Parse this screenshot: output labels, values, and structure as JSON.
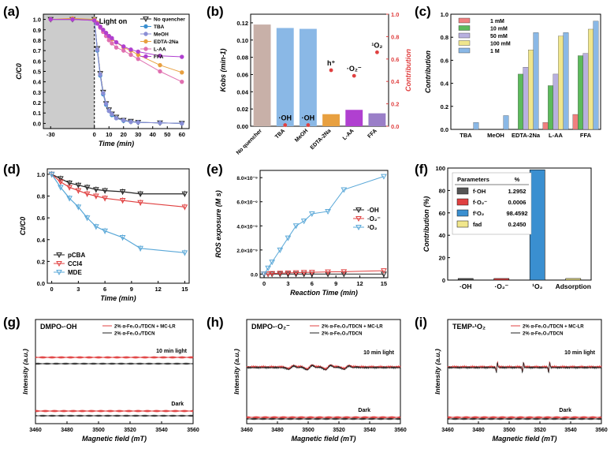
{
  "figure_title": "Quenching experiments, ROS contributions, and EPR spectra",
  "colors": {
    "black": "#222222",
    "blue": "#3a8fd0",
    "lavender": "#8b8fd6",
    "orange": "#e8a040",
    "pink": "#e070b0",
    "magenta": "#b040d0",
    "brown": "#c8b0a8",
    "light_blue": "#8ab8e6",
    "red": "#e04040",
    "cyan": "#5aa8d8",
    "purple": "#9a7fc8",
    "violet": "#b8b0e0",
    "green": "#5cba5c",
    "yellow": "#f0e68c",
    "dark_grey": "#555555",
    "salmon": "#f08080",
    "grey_region": "#cccccc"
  },
  "panels": {
    "a": {
      "label": "(a)"
    },
    "b": {
      "label": "(b)"
    },
    "c": {
      "label": "(c)"
    },
    "d": {
      "label": "(d)"
    },
    "e": {
      "label": "(e)"
    },
    "f": {
      "label": "(f)"
    },
    "g": {
      "label": "(g)"
    },
    "h": {
      "label": "(h)"
    },
    "i": {
      "label": "(i)"
    }
  },
  "chart_data": [
    {
      "panel": "a",
      "type": "line",
      "title": "",
      "xlabel": "Time (min)",
      "ylabel": "C/C0",
      "annotation": "Light on",
      "dark_region": [
        -30,
        0
      ],
      "xlim": [
        -35,
        65
      ],
      "ylim": [
        -0.05,
        1.05
      ],
      "xticks": [
        -30,
        0,
        10,
        20,
        30,
        40,
        50,
        60
      ],
      "yticks": [
        0.0,
        0.1,
        0.2,
        0.3,
        0.4,
        0.5,
        0.6,
        0.7,
        0.8,
        0.9,
        1.0
      ],
      "legend": "top-right",
      "series": [
        {
          "name": "No quencher",
          "color": "black",
          "x": [
            -30,
            -15,
            0,
            2,
            4,
            6,
            8,
            10,
            12,
            15,
            20,
            25,
            30,
            45,
            60
          ],
          "y": [
            1.0,
            1.0,
            1.0,
            0.72,
            0.48,
            0.3,
            0.19,
            0.13,
            0.09,
            0.06,
            0.03,
            0.02,
            0.01,
            0.005,
            0.0
          ]
        },
        {
          "name": "TBA",
          "color": "blue",
          "x": [
            -30,
            -15,
            0,
            2,
            4,
            6,
            8,
            10,
            12,
            15,
            20,
            25,
            30,
            45,
            60
          ],
          "y": [
            1.0,
            1.0,
            1.0,
            0.7,
            0.46,
            0.28,
            0.18,
            0.12,
            0.08,
            0.05,
            0.025,
            0.015,
            0.01,
            0.005,
            0.0
          ]
        },
        {
          "name": "MeOH",
          "color": "lavender",
          "x": [
            -30,
            -15,
            0,
            2,
            4,
            6,
            8,
            10,
            12,
            15,
            20,
            25,
            30,
            45,
            60
          ],
          "y": [
            1.0,
            1.0,
            0.99,
            0.71,
            0.47,
            0.29,
            0.19,
            0.12,
            0.09,
            0.05,
            0.03,
            0.015,
            0.01,
            0.005,
            0.0
          ]
        },
        {
          "name": "EDTA-2Na",
          "color": "orange",
          "x": [
            -30,
            -15,
            0,
            2,
            4,
            6,
            8,
            10,
            12,
            15,
            20,
            25,
            30,
            45,
            60
          ],
          "y": [
            1.0,
            1.01,
            1.0,
            0.97,
            0.93,
            0.9,
            0.87,
            0.84,
            0.81,
            0.78,
            0.73,
            0.7,
            0.66,
            0.56,
            0.49
          ]
        },
        {
          "name": "L-AA",
          "color": "pink",
          "x": [
            -30,
            -15,
            0,
            2,
            4,
            6,
            8,
            10,
            12,
            15,
            20,
            25,
            30,
            45,
            60
          ],
          "y": [
            1.0,
            1.0,
            0.99,
            0.96,
            0.92,
            0.88,
            0.84,
            0.8,
            0.77,
            0.73,
            0.7,
            0.66,
            0.62,
            0.5,
            0.4
          ]
        },
        {
          "name": "FFA",
          "color": "magenta",
          "x": [
            -30,
            -15,
            0,
            2,
            4,
            6,
            8,
            10,
            12,
            15,
            20,
            25,
            30,
            45,
            60
          ],
          "y": [
            1.0,
            1.0,
            0.99,
            0.96,
            0.93,
            0.9,
            0.87,
            0.84,
            0.82,
            0.78,
            0.74,
            0.71,
            0.69,
            0.65,
            0.64
          ]
        }
      ]
    },
    {
      "panel": "b",
      "type": "bar",
      "xlabel": "",
      "ylabel": "Kobs (min-1)",
      "ylabel_right": "Contribution",
      "ylim": [
        0,
        0.13
      ],
      "ylim_right": [
        0,
        1.0
      ],
      "yticks": [
        0.0,
        0.02,
        0.04,
        0.06,
        0.08,
        0.1,
        0.12
      ],
      "yticks_right": [
        0.0,
        0.2,
        0.4,
        0.6,
        0.8,
        1.0
      ],
      "categories": [
        "No quencher",
        "TBA",
        "MeOH",
        "EDTA-2Na",
        "L-AA",
        "FFA"
      ],
      "values": [
        0.118,
        0.114,
        0.113,
        0.014,
        0.019,
        0.015
      ],
      "bar_colors": [
        "brown",
        "light_blue",
        "light_blue",
        "orange",
        "magenta",
        "purple"
      ],
      "contribution_points": [
        {
          "category": "TBA",
          "value": 0.01,
          "label": "·OH"
        },
        {
          "category": "MeOH",
          "value": 0.01,
          "label": "·OH"
        },
        {
          "category": "EDTA-2Na",
          "value": 0.5,
          "label": "h⁺"
        },
        {
          "category": "L-AA",
          "value": 0.45,
          "label": "·O₂⁻"
        },
        {
          "category": "FFA",
          "value": 0.66,
          "label": "¹O₂"
        }
      ]
    },
    {
      "panel": "c",
      "type": "bar",
      "xlabel": "",
      "ylabel": "Contribution",
      "ylim": [
        0,
        1.0
      ],
      "yticks": [
        0.0,
        0.2,
        0.4,
        0.6,
        0.8,
        1.0
      ],
      "legend": "top-left",
      "categories": [
        "TBA",
        "MeOH",
        "EDTA-2Na",
        "L-AA",
        "FFA"
      ],
      "series": [
        {
          "name": "1 mM",
          "color": "salmon",
          "values": [
            0.0,
            0.0,
            0.0,
            0.06,
            0.13
          ]
        },
        {
          "name": "10 mM",
          "color": "green",
          "values": [
            0.0,
            0.0,
            0.48,
            0.38,
            0.64
          ]
        },
        {
          "name": "50 mM",
          "color": "violet",
          "values": [
            0.0,
            0.0,
            0.54,
            0.48,
            0.66
          ]
        },
        {
          "name": "100 mM",
          "color": "yellow",
          "values": [
            0.0,
            0.0,
            0.69,
            0.81,
            0.87
          ]
        },
        {
          "name": "1 M",
          "color": "light_blue",
          "values": [
            0.06,
            0.12,
            0.84,
            0.84,
            0.94
          ]
        }
      ]
    },
    {
      "panel": "d",
      "type": "line",
      "xlabel": "Time (min)",
      "ylabel": "Ct/C0",
      "xlim": [
        -0.5,
        15.5
      ],
      "ylim": [
        0.0,
        1.05
      ],
      "xticks": [
        0,
        3,
        6,
        9,
        12,
        15
      ],
      "yticks": [
        0.0,
        0.2,
        0.4,
        0.6,
        0.8,
        1.0
      ],
      "legend": "bottom-left",
      "series": [
        {
          "name": "pCBA",
          "color": "black",
          "x": [
            0,
            1,
            2,
            3,
            4,
            5,
            6,
            8,
            10,
            15
          ],
          "y": [
            1.0,
            0.96,
            0.92,
            0.9,
            0.88,
            0.86,
            0.85,
            0.84,
            0.82,
            0.82
          ]
        },
        {
          "name": "CCl4",
          "color": "red",
          "x": [
            0,
            1,
            2,
            3,
            4,
            5,
            6,
            8,
            10,
            15
          ],
          "y": [
            1.0,
            0.93,
            0.88,
            0.85,
            0.82,
            0.8,
            0.78,
            0.76,
            0.74,
            0.7
          ]
        },
        {
          "name": "MDE",
          "color": "cyan",
          "x": [
            0,
            1,
            2,
            3,
            4,
            5,
            6,
            8,
            10,
            15
          ],
          "y": [
            1.0,
            0.88,
            0.78,
            0.7,
            0.6,
            0.52,
            0.48,
            0.42,
            0.32,
            0.28
          ]
        }
      ]
    },
    {
      "panel": "e",
      "type": "line",
      "xlabel": "Reaction Time (min)",
      "ylabel": "ROS exposure (M s)",
      "xlim": [
        -0.5,
        15.5
      ],
      "ylim": [
        -3e-10,
        8.6e-09
      ],
      "xticks": [
        0,
        3,
        6,
        9,
        12,
        15
      ],
      "yticks": [
        0.0,
        2e-09,
        4e-09,
        6e-09,
        8e-09
      ],
      "ytick_labels": [
        "0.0",
        "2.0×10⁻⁹",
        "4.0×10⁻⁹",
        "6.0×10⁻⁹",
        "8.0×10⁻⁹"
      ],
      "legend": "center-right",
      "series": [
        {
          "name": "·OH",
          "color": "black",
          "x": [
            0,
            0.5,
            1,
            2,
            3,
            4,
            5,
            6,
            8,
            10,
            15
          ],
          "y": [
            0.0,
            0.0,
            0.0,
            0.0,
            0.0,
            0.0,
            0.0,
            0.0,
            0.0,
            0.0,
            0.0
          ]
        },
        {
          "name": "·O₂⁻",
          "color": "red",
          "x": [
            0,
            0.5,
            1,
            2,
            3,
            4,
            5,
            6,
            8,
            10,
            15
          ],
          "y": [
            0.0,
            2e-11,
            5e-11,
            8e-11,
            1e-10,
            1.2e-10,
            1.4e-10,
            1.5e-10,
            1.8e-10,
            2e-10,
            2.8e-10
          ]
        },
        {
          "name": "¹O₂",
          "color": "cyan",
          "x": [
            0,
            0.5,
            1,
            2,
            3,
            4,
            5,
            6,
            8,
            10,
            15
          ],
          "y": [
            0.0,
            5e-10,
            1e-09,
            2e-09,
            3e-09,
            4e-09,
            4.4e-09,
            5e-09,
            5.2e-09,
            7e-09,
            8.1e-09
          ]
        }
      ]
    },
    {
      "panel": "f",
      "type": "bar",
      "xlabel": "",
      "ylabel": "Contribution (%)",
      "ylim": [
        0,
        100
      ],
      "yticks": [
        0,
        20,
        40,
        60,
        80,
        100
      ],
      "categories": [
        "·OH",
        "·O₂⁻",
        "¹O₂",
        "Adsorption"
      ],
      "values": [
        1.2952,
        0.0006,
        98.4592,
        0.245
      ],
      "bar_colors": [
        "dark_grey",
        "red",
        "blue",
        "yellow"
      ],
      "table": {
        "header": [
          "Parameters",
          "%"
        ],
        "rows": [
          {
            "swatch": "dark_grey",
            "name": "f·OH",
            "value": "1.2952"
          },
          {
            "swatch": "red",
            "name": "f·O₂⁻",
            "value": "0.0006"
          },
          {
            "swatch": "blue",
            "name": "f¹O₂",
            "value": "98.4592"
          },
          {
            "swatch": "yellow",
            "name": "fad",
            "value": "0.2450"
          }
        ]
      }
    },
    {
      "panel": "g",
      "type": "line",
      "title": "DMPO-·OH",
      "xlabel": "Magnetic field (mT)",
      "ylabel": "Intensity (a.u.)",
      "xlim": [
        3460,
        3560
      ],
      "xticks": [
        3460,
        3480,
        3500,
        3520,
        3540,
        3560
      ],
      "legend": "top-right",
      "series": [
        {
          "name": "2% α-Fe₂O₃/TDCN + MC-LR",
          "color": "red"
        },
        {
          "name": "2% α-Fe₂O₃/TDCN",
          "color": "black"
        }
      ],
      "condition_labels": [
        "10 min light",
        "Dark"
      ],
      "spectrum": "flat"
    },
    {
      "panel": "h",
      "type": "line",
      "title": "DMPO-·O₂⁻",
      "xlabel": "Magnetic field (mT)",
      "ylabel": "Intensity (a.u.)",
      "xlim": [
        3460,
        3560
      ],
      "xticks": [
        3460,
        3480,
        3500,
        3520,
        3540,
        3560
      ],
      "legend": "top-right",
      "series": [
        {
          "name": "2% α-Fe₂O₃/TDCN + MC-LR",
          "color": "red"
        },
        {
          "name": "2% α-Fe₂O₃/TDCN",
          "color": "black"
        }
      ],
      "condition_labels": [
        "10 min light",
        "Dark"
      ],
      "spectrum": "dmpo_superoxide",
      "peak_fields": [
        3489,
        3501,
        3513,
        3525
      ]
    },
    {
      "panel": "i",
      "type": "line",
      "title": "TEMP-¹O₂",
      "xlabel": "Magnetic field (mT)",
      "ylabel": "Intensity (a.u.)",
      "xlim": [
        3460,
        3560
      ],
      "xticks": [
        3460,
        3480,
        3500,
        3520,
        3540,
        3560
      ],
      "legend": "top-right",
      "series": [
        {
          "name": "2% α-Fe₂O₃/TDCN + MC-LR",
          "color": "red"
        },
        {
          "name": "2% α-Fe₂O₃/TDCN",
          "color": "black"
        }
      ],
      "condition_labels": [
        "10 min light",
        "Dark"
      ],
      "spectrum": "temp_triplet",
      "peak_fields": [
        3492,
        3509,
        3526
      ]
    }
  ]
}
